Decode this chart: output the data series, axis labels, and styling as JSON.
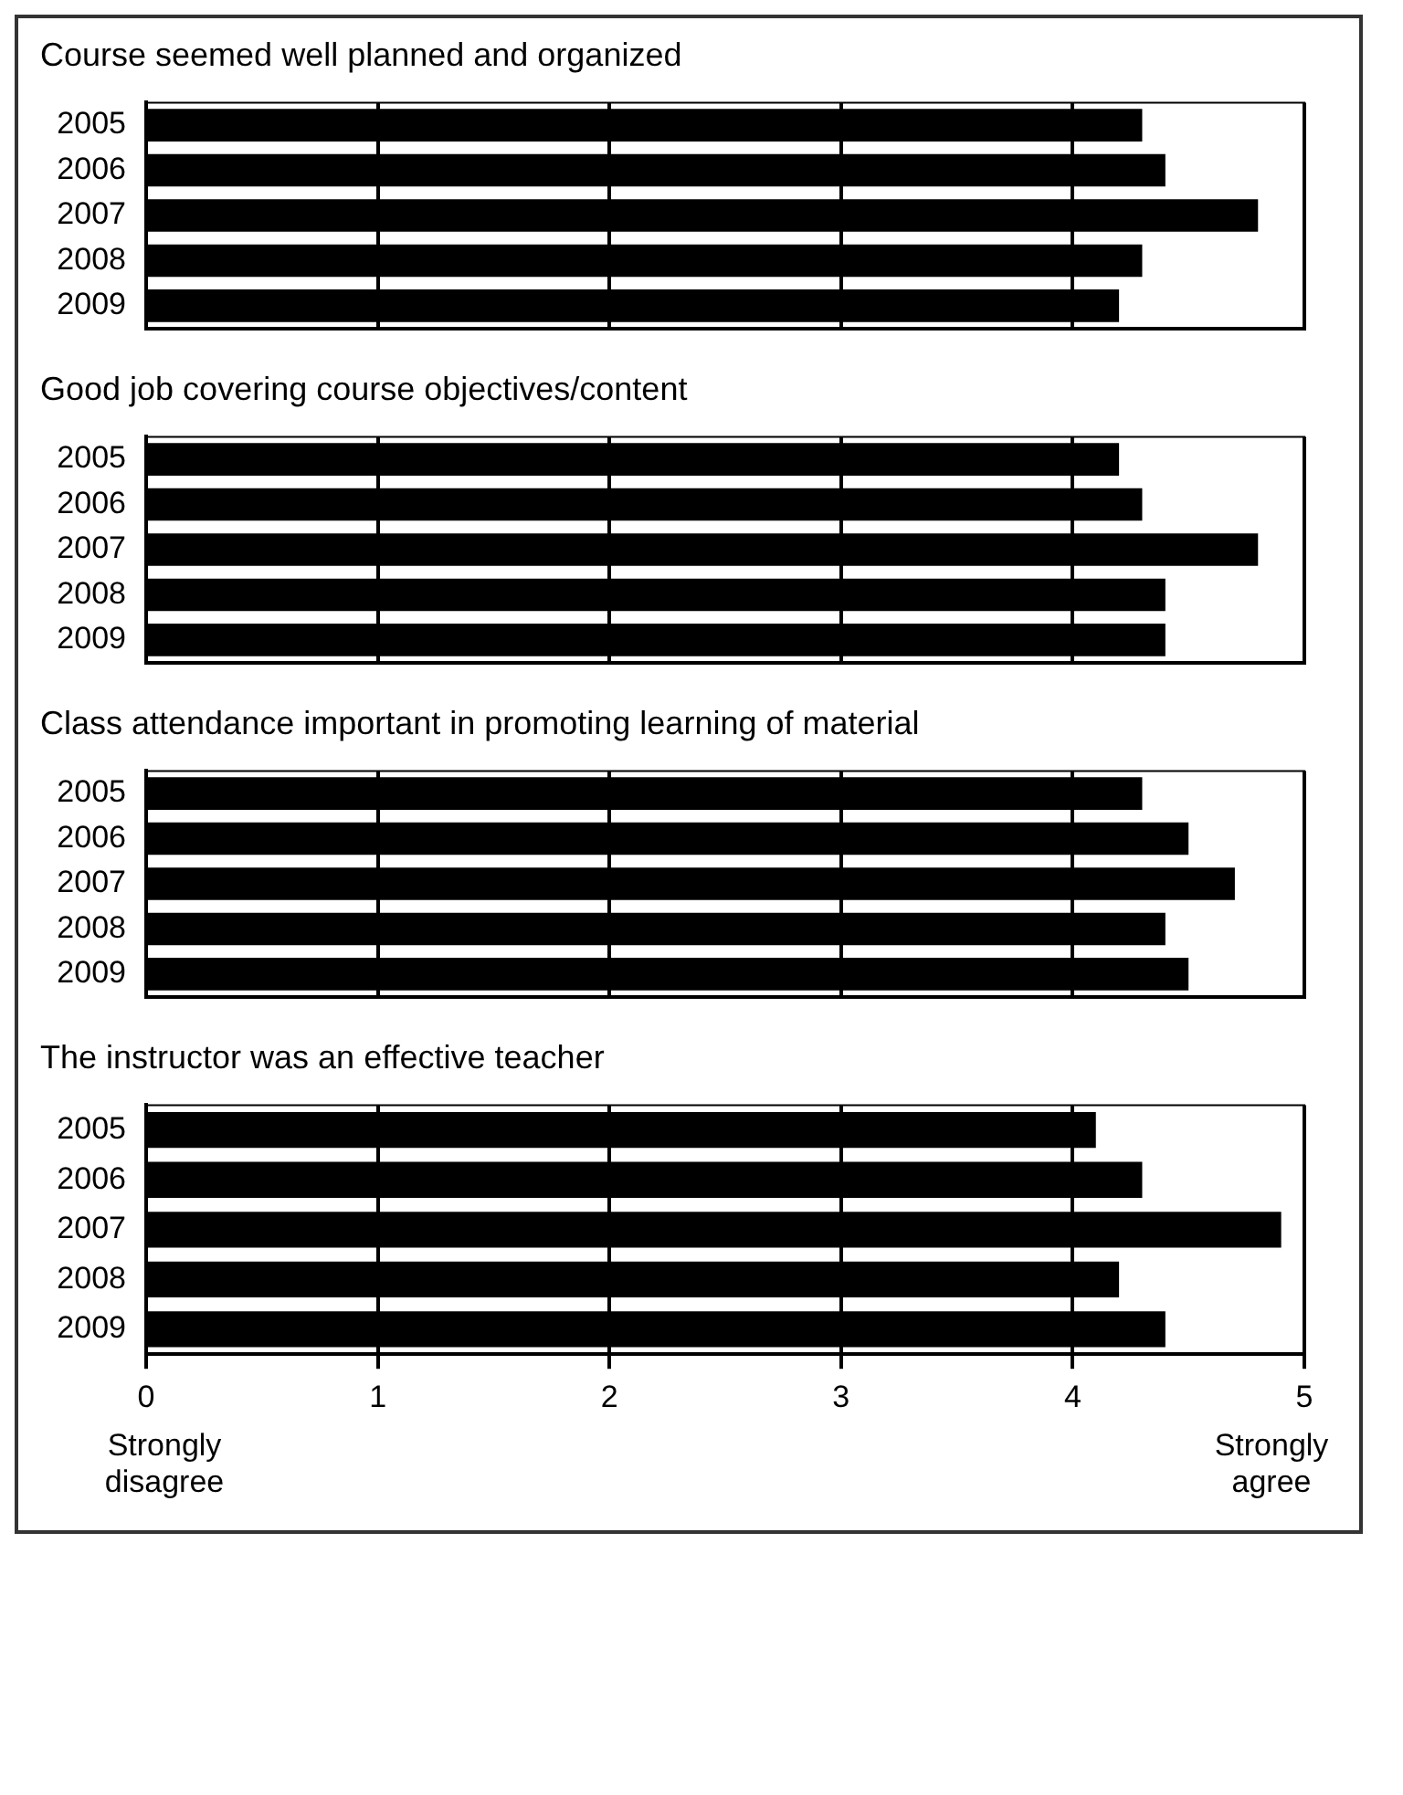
{
  "chart_data": [
    {
      "type": "bar",
      "orientation": "horizontal",
      "title": "Course seemed well planned and organized",
      "categories": [
        "2005",
        "2006",
        "2007",
        "2008",
        "2009"
      ],
      "values": [
        4.3,
        4.4,
        4.8,
        4.3,
        4.2
      ],
      "color": "#000000",
      "xlim": [
        0,
        5
      ],
      "xticks": [
        0,
        1,
        2,
        3,
        4,
        5
      ],
      "grid": "x",
      "tick_labels": "y"
    },
    {
      "type": "bar",
      "orientation": "horizontal",
      "title": "Good job covering course objectives/content",
      "categories": [
        "2005",
        "2006",
        "2007",
        "2008",
        "2009"
      ],
      "values": [
        4.2,
        4.3,
        4.8,
        4.4,
        4.4
      ],
      "color": "#000000",
      "xlim": [
        0,
        5
      ],
      "xticks": [
        0,
        1,
        2,
        3,
        4,
        5
      ],
      "grid": "x",
      "tick_labels": "y"
    },
    {
      "type": "bar",
      "orientation": "horizontal",
      "title": "Class attendance important in promoting learning of material",
      "categories": [
        "2005",
        "2006",
        "2007",
        "2008",
        "2009"
      ],
      "values": [
        4.3,
        4.5,
        4.7,
        4.4,
        4.5
      ],
      "color": "#000000",
      "xlim": [
        0,
        5
      ],
      "xticks": [
        0,
        1,
        2,
        3,
        4,
        5
      ],
      "grid": "x",
      "tick_labels": "y"
    },
    {
      "type": "bar",
      "orientation": "horizontal",
      "title": "The instructor was an effective teacher",
      "categories": [
        "2005",
        "2006",
        "2007",
        "2008",
        "2009"
      ],
      "values": [
        4.1,
        4.3,
        4.9,
        4.2,
        4.4
      ],
      "color": "#000000",
      "xlim": [
        0,
        5
      ],
      "xticks": [
        0,
        1,
        2,
        3,
        4,
        5
      ],
      "grid": "x",
      "annotations": [
        "Strongly disagree",
        "Strongly agree"
      ]
    }
  ]
}
